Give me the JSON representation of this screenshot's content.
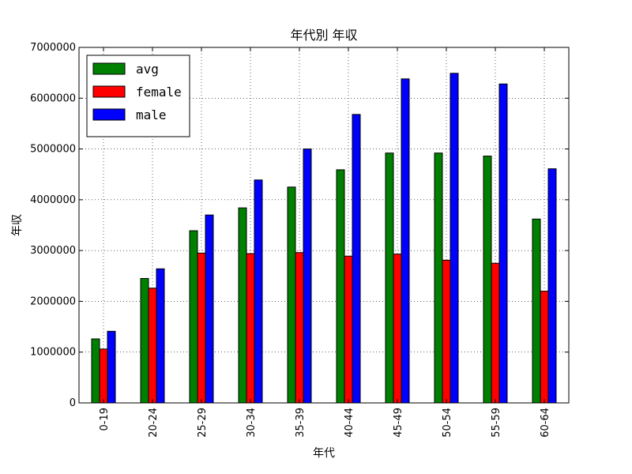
{
  "chart_data": {
    "type": "bar",
    "title": "年代別 年収",
    "xlabel": "年代",
    "ylabel": "年収",
    "categories": [
      "0-19",
      "20-24",
      "25-29",
      "30-34",
      "35-39",
      "40-44",
      "45-49",
      "50-54",
      "55-59",
      "60-64"
    ],
    "series": [
      {
        "name": "avg",
        "color": "#008000",
        "values": [
          1260000,
          2450000,
          3390000,
          3840000,
          4250000,
          4590000,
          4920000,
          4920000,
          4860000,
          3620000
        ]
      },
      {
        "name": "female",
        "color": "#ff0000",
        "values": [
          1060000,
          2260000,
          2950000,
          2940000,
          2960000,
          2890000,
          2930000,
          2810000,
          2750000,
          2200000
        ]
      },
      {
        "name": "male",
        "color": "#0000ff",
        "values": [
          1410000,
          2640000,
          3700000,
          4390000,
          5000000,
          5680000,
          6380000,
          6490000,
          6280000,
          4610000
        ]
      }
    ],
    "ylim": [
      0,
      7000000
    ],
    "yticks": [
      "0",
      "1000000",
      "2000000",
      "3000000",
      "4000000",
      "5000000",
      "6000000",
      "7000000"
    ],
    "grid": true,
    "legend_position": "top-left"
  }
}
